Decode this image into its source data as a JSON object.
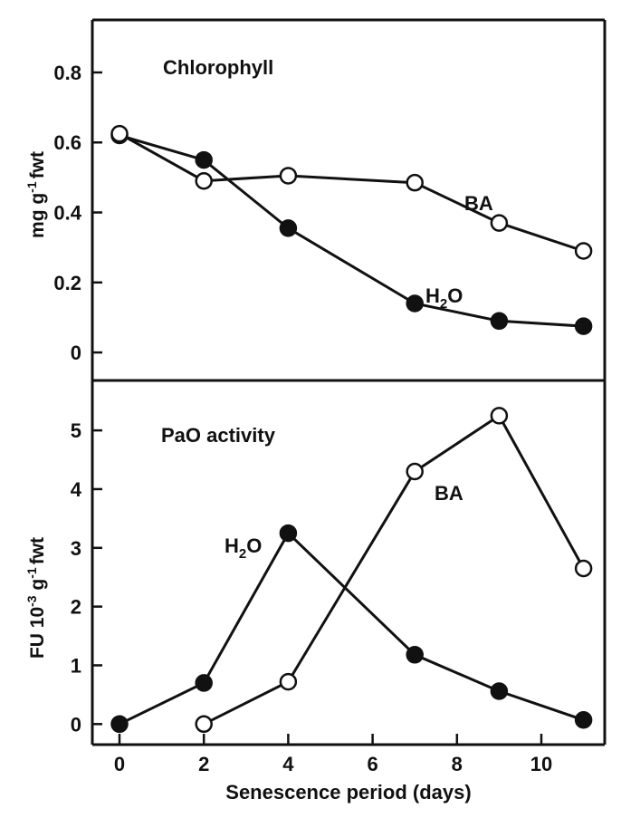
{
  "chart_data": [
    {
      "type": "line",
      "title": "Chlorophyll",
      "xlabel": "",
      "ylabel": "mg g-1 fwt",
      "ylabel_parts": [
        "mg g",
        "-1",
        "fwt"
      ],
      "xlim": [
        0,
        11
      ],
      "ylim": [
        -0.08,
        0.95
      ],
      "yticks": [
        0,
        0.2,
        0.4,
        0.6,
        0.8
      ],
      "yticklabels": [
        "0",
        "0.2",
        "0.4",
        "0.6",
        "0.8"
      ],
      "grid": false,
      "series": [
        {
          "name": "H2O",
          "label_parts": [
            "H",
            "2",
            "O"
          ],
          "marker": "filled",
          "x": [
            0,
            2,
            4,
            7,
            9,
            11
          ],
          "y": [
            0.62,
            0.55,
            0.355,
            0.14,
            0.09,
            0.075
          ]
        },
        {
          "name": "BA",
          "label_parts": [
            "BA"
          ],
          "marker": "open",
          "x": [
            0,
            2,
            4,
            7,
            9,
            11
          ],
          "y": [
            0.625,
            0.49,
            0.505,
            0.485,
            0.37,
            0.29
          ]
        }
      ]
    },
    {
      "type": "line",
      "title": "PaO activity",
      "xlabel": "Senescence period (days)",
      "ylabel": "FU 10-3 g-1 fwt",
      "ylabel_parts": [
        "FU 10",
        "-3",
        " g",
        "-1",
        "fwt"
      ],
      "xlim": [
        0,
        11
      ],
      "ylim": [
        -0.35,
        5.85
      ],
      "xticks": [
        0,
        2,
        4,
        6,
        8,
        10
      ],
      "xticklabels": [
        "0",
        "2",
        "4",
        "6",
        "8",
        "10"
      ],
      "yticks": [
        0,
        1,
        2,
        3,
        4,
        5
      ],
      "yticklabels": [
        "0",
        "1",
        "2",
        "3",
        "4",
        "5"
      ],
      "grid": false,
      "series": [
        {
          "name": "H2O",
          "label_parts": [
            "H",
            "2",
            "O"
          ],
          "marker": "filled",
          "x": [
            0,
            2,
            4,
            7,
            9,
            11
          ],
          "y": [
            0,
            0.7,
            3.25,
            1.18,
            0.56,
            0.07
          ]
        },
        {
          "name": "BA",
          "label_parts": [
            "BA"
          ],
          "marker": "open",
          "x": [
            2,
            4,
            7,
            9,
            11
          ],
          "y": [
            0,
            0.72,
            4.3,
            5.25,
            2.65
          ]
        }
      ]
    }
  ]
}
